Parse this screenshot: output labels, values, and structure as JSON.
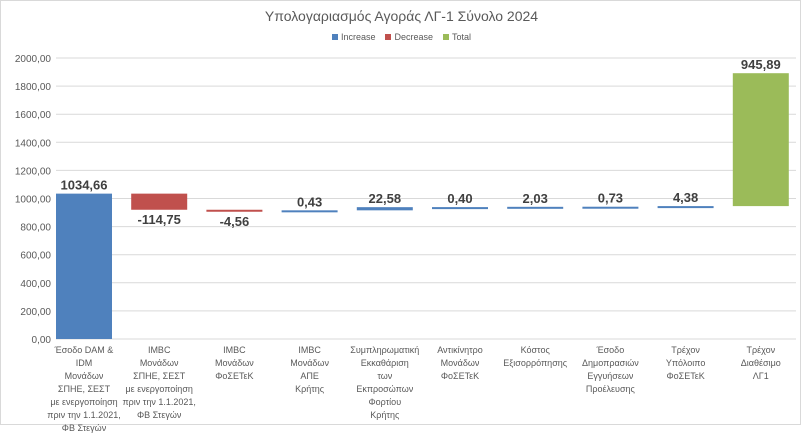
{
  "chart_data": {
    "type": "waterfall",
    "title": "Υπολογαριασμός Αγοράς ΛΓ-1 Σύνολο 2024",
    "legend": [
      {
        "name": "Increase",
        "color": "#4f81bd"
      },
      {
        "name": "Decrease",
        "color": "#c0504d"
      },
      {
        "name": "Total",
        "color": "#9bbb59"
      }
    ],
    "legend_position": "top",
    "ylim": [
      0,
      2000
    ],
    "yticks": [
      "0,00",
      "200,00",
      "400,00",
      "600,00",
      "800,00",
      "1000,00",
      "1200,00",
      "1400,00",
      "1600,00",
      "1800,00",
      "2000,00"
    ],
    "categories": [
      "Έσοδο DAM & IDM\nΜονάδων\nΣΠΗΕ, ΣΕΣΤ\nμε ενεργοποίηση\nπριν την 1.1.2021,\nΦΒ Στεγών",
      "IMBC\nΜονάδων\nΣΠΗΕ, ΣΕΣΤ\nμε ενεργοποίηση\nπριν την 1.1.2021,\nΦΒ Στεγών",
      "IMBC\nΜονάδων\nΦοΣΕΤεΚ",
      "IMBC\nΜονάδων\nΑΠΕ\nΚρήτης",
      "Συμπληρωματική\nΕκκαθάριση\nτων\nΕκπροσώπων\nΦορτίου\nΚρήτης",
      "Αντικίνητρο\nΜονάδων\nΦοΣΕΤεΚ",
      "Κόστος\nΕξισορρόπησης",
      "Έσοδο\nΔημοπρασιών\nΕγγυήσεων\nΠροέλευσης",
      "Τρέχον\nΥπόλοιπο\nΦοΣΕΤεΚ",
      "Τρέχον\nΔιαθέσιμο\nΛΓ1"
    ],
    "values": [
      1034.66,
      -114.75,
      -4.56,
      0.43,
      22.58,
      0.4,
      2.03,
      0.73,
      4.38,
      945.89
    ],
    "labels": [
      "1034,66",
      "-114,75",
      "-4,56",
      "0,43",
      "22,58",
      "0,40",
      "2,03",
      "0,73",
      "4,38",
      "945,89"
    ],
    "kinds": [
      "increase",
      "decrease",
      "decrease",
      "increase",
      "increase",
      "increase",
      "increase",
      "increase",
      "increase",
      "total"
    ]
  }
}
